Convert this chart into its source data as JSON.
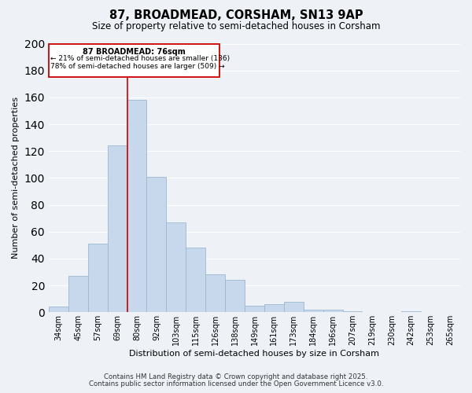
{
  "title": "87, BROADMEAD, CORSHAM, SN13 9AP",
  "subtitle": "Size of property relative to semi-detached houses in Corsham",
  "xlabel": "Distribution of semi-detached houses by size in Corsham",
  "ylabel": "Number of semi-detached properties",
  "bin_labels": [
    "34sqm",
    "45sqm",
    "57sqm",
    "69sqm",
    "80sqm",
    "92sqm",
    "103sqm",
    "115sqm",
    "126sqm",
    "138sqm",
    "149sqm",
    "161sqm",
    "173sqm",
    "184sqm",
    "196sqm",
    "207sqm",
    "219sqm",
    "230sqm",
    "242sqm",
    "253sqm",
    "265sqm"
  ],
  "bar_values": [
    4,
    27,
    51,
    124,
    158,
    101,
    67,
    48,
    28,
    24,
    5,
    6,
    8,
    2,
    2,
    1,
    0,
    0,
    1,
    0,
    0
  ],
  "bar_color": "#c8d8ec",
  "bar_edge_color": "#9ab8d0",
  "marker_value_index": 4,
  "marker_label": "87 BROADMEAD: 76sqm",
  "marker_line_color": "#cc0000",
  "annotation_line1": "← 21% of semi-detached houses are smaller (136)",
  "annotation_line2": "78% of semi-detached houses are larger (509) →",
  "box_edge_color": "#cc0000",
  "ylim": [
    0,
    200
  ],
  "yticks": [
    0,
    20,
    40,
    60,
    80,
    100,
    120,
    140,
    160,
    180,
    200
  ],
  "footnote1": "Contains HM Land Registry data © Crown copyright and database right 2025.",
  "footnote2": "Contains public sector information licensed under the Open Government Licence v3.0.",
  "background_color": "#eef2f7",
  "grid_color": "#ffffff",
  "fig_width": 6.0,
  "fig_height": 5.0
}
